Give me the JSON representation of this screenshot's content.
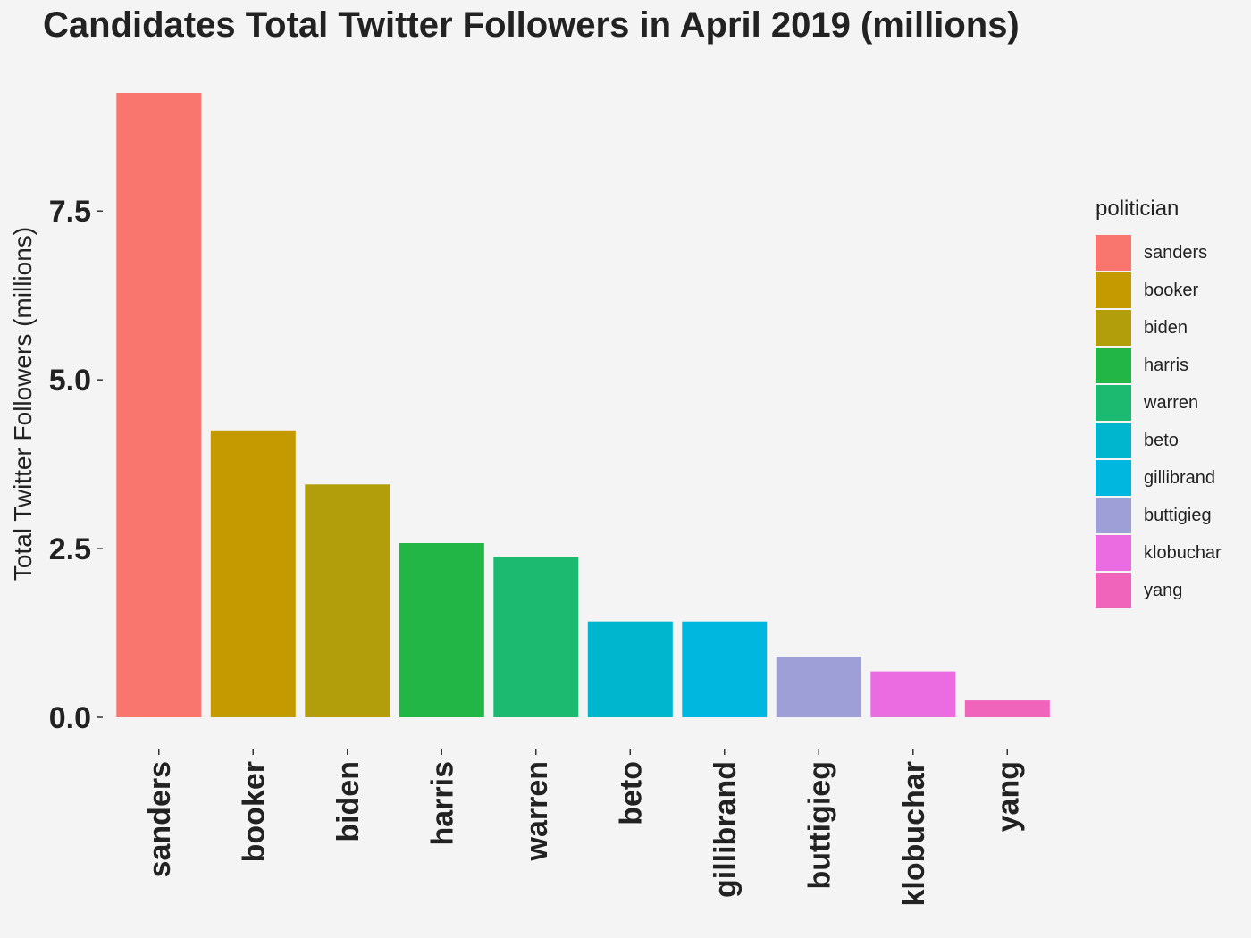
{
  "chart_data": {
    "type": "bar",
    "title": "Candidates Total Twitter Followers in April 2019 (millions)",
    "xlabel": "",
    "ylabel": "Total Twitter Followers (millions)",
    "categories": [
      "sanders",
      "booker",
      "biden",
      "harris",
      "warren",
      "beto",
      "gillibrand",
      "buttigieg",
      "klobuchar",
      "yang"
    ],
    "values": [
      9.25,
      4.25,
      3.45,
      2.58,
      2.38,
      1.42,
      1.42,
      0.9,
      0.68,
      0.25
    ],
    "colors": [
      "#F8766D",
      "#C49A00",
      "#B29E0A",
      "#22B646",
      "#1CBA70",
      "#00B5CE",
      "#00B7E0",
      "#9E9FD6",
      "#EA6CE0",
      "#F164BB"
    ],
    "yticks": [
      0.0,
      2.5,
      5.0,
      7.5
    ],
    "ytick_labels": [
      "0.0",
      "2.5",
      "5.0",
      "7.5"
    ],
    "ylim": [
      0,
      9.7
    ],
    "grid": false,
    "legend": {
      "title": "politician",
      "position": "right",
      "entries": [
        "sanders",
        "booker",
        "biden",
        "harris",
        "warren",
        "beto",
        "gillibrand",
        "buttigieg",
        "klobuchar",
        "yang"
      ]
    }
  }
}
